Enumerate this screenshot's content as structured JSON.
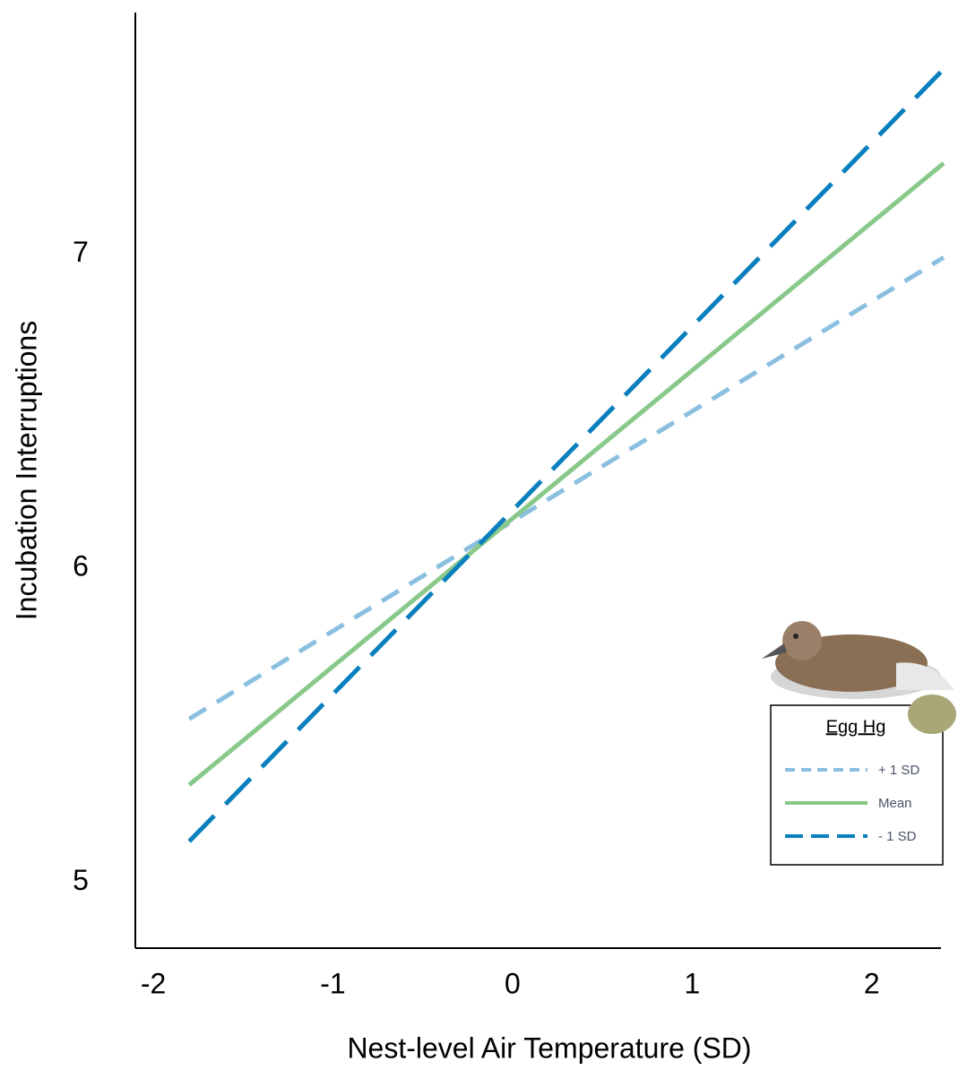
{
  "chart_data": {
    "type": "line",
    "x_label": "Nest-level Air Temperature (SD)",
    "y_label": "Incubation Interruptions",
    "x": [
      -1.8,
      2.4
    ],
    "series": [
      {
        "name": "+ 1 SD",
        "color": "#8bbfe0",
        "dash": "22,14",
        "values": [
          5.52,
          6.99
        ]
      },
      {
        "name": "Mean",
        "color": "#88c98a",
        "dash": "none",
        "values": [
          5.31,
          7.29
        ]
      },
      {
        "name": "- 1 SD",
        "color": "#0a7fbe",
        "dash": "40,18",
        "values": [
          5.13,
          7.59
        ]
      }
    ],
    "legend_title": "Egg Hg",
    "legend_position": "lower right",
    "xlim": [
      -2.1,
      2.4
    ],
    "xticks": [
      -2,
      -1,
      0,
      1,
      2
    ],
    "ylim": [
      4.79,
      7.77
    ],
    "yticks": [
      5,
      6,
      7
    ],
    "grid": false
  }
}
